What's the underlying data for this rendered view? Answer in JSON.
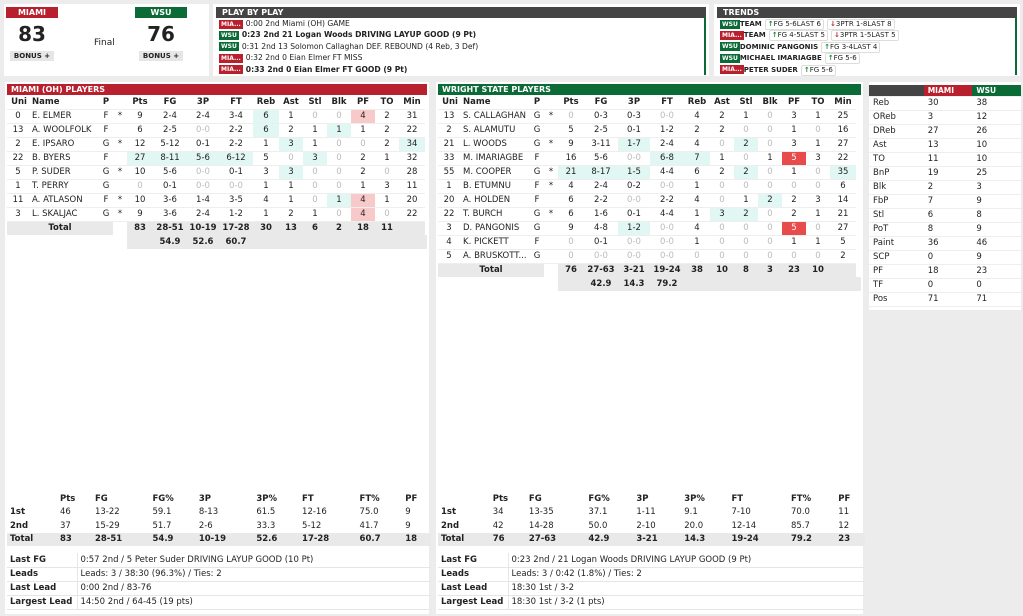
{
  "colors": {
    "miami": "#b8202e",
    "wsu": "#0b6b37",
    "header": "#444444",
    "lead_cell": "#e0f7f3",
    "foul_warn": "#f8c9c9",
    "fouled_out": "#e84b4b"
  },
  "score": {
    "home": {
      "abbr": "MIAMI",
      "score": "83",
      "bonus": "BONUS +"
    },
    "away": {
      "abbr": "WSU",
      "score": "76",
      "bonus": "BONUS +"
    },
    "status": "Final"
  },
  "pbp": {
    "title": "PLAY BY PLAY",
    "items": [
      {
        "team": "MIA...",
        "team_key": "miami",
        "text": "0:00 2nd Miami (OH) GAME",
        "bold": false
      },
      {
        "team": "WSU",
        "team_key": "wsu",
        "text": "0:23 2nd 21 Logan Woods DRIVING LAYUP GOOD (9 Pt)",
        "bold": true
      },
      {
        "team": "WSU",
        "team_key": "wsu",
        "text": "0:31 2nd 13 Solomon Callaghan DEF. REBOUND (4 Reb, 3 Def)",
        "bold": false
      },
      {
        "team": "MIA...",
        "team_key": "miami",
        "text": "0:32 2nd 0 Eian Elmer FT MISS",
        "bold": false
      },
      {
        "team": "MIA...",
        "team_key": "miami",
        "text": "0:33 2nd 0 Eian Elmer FT GOOD (9 Pt)",
        "bold": true
      }
    ]
  },
  "trends": {
    "title": "TRENDS",
    "items": [
      {
        "team": "WSU",
        "team_key": "wsu",
        "who": "TEAM",
        "chips": [
          {
            "dir": "up",
            "text": "FG 5-6LAST 6"
          },
          {
            "dir": "down",
            "text": "3PTR 1-8LAST 8"
          }
        ]
      },
      {
        "team": "MIA...",
        "team_key": "miami",
        "who": "TEAM",
        "chips": [
          {
            "dir": "up",
            "text": "FG 4-5LAST 5"
          },
          {
            "dir": "down",
            "text": "3PTR 1-5LAST 5"
          }
        ]
      },
      {
        "team": "WSU",
        "team_key": "wsu",
        "who": "DOMINIC PANGONIS",
        "chips": [
          {
            "dir": "up",
            "text": "FG 3-4LAST 4"
          }
        ]
      },
      {
        "team": "WSU",
        "team_key": "wsu",
        "who": "MICHAEL IMARIAGBE",
        "chips": [
          {
            "dir": "up",
            "text": "FG 5-6"
          }
        ]
      },
      {
        "team": "MIA...",
        "team_key": "miami",
        "who": "PETER SUDER",
        "chips": [
          {
            "dir": "up",
            "text": "FG 5-6"
          }
        ]
      }
    ]
  },
  "columns": [
    "Uni",
    "Name",
    "P",
    "",
    "Pts",
    "FG",
    "3P",
    "FT",
    "Reb",
    "Ast",
    "Stl",
    "Blk",
    "PF",
    "TO",
    "Min"
  ],
  "teams": [
    {
      "key": "miami",
      "title": "MIAMI (OH) PLAYERS",
      "players": [
        {
          "row": [
            "0",
            "E. ELMER",
            "F",
            "*",
            "9",
            "2-4",
            "2-4",
            "3-4",
            "6",
            "1",
            "0",
            "0",
            "4",
            "2",
            "31"
          ],
          "hl": {
            "Reb": "c",
            "PF": "p"
          }
        },
        {
          "row": [
            "13",
            "A. WOOLFOLK",
            "F",
            "",
            "6",
            "2-5",
            "0-0",
            "2-2",
            "6",
            "2",
            "1",
            "1",
            "1",
            "2",
            "22"
          ],
          "hl": {
            "Reb": "c",
            "Blk": "c"
          }
        },
        {
          "row": [
            "2",
            "E. IPSARO",
            "G",
            "*",
            "12",
            "5-12",
            "0-1",
            "2-2",
            "1",
            "3",
            "1",
            "0",
            "0",
            "2",
            "34"
          ],
          "hl": {
            "Ast": "c",
            "Min": "c"
          }
        },
        {
          "row": [
            "22",
            "B. BYERS",
            "F",
            "",
            "27",
            "8-11",
            "5-6",
            "6-12",
            "5",
            "0",
            "3",
            "0",
            "2",
            "1",
            "32"
          ],
          "hl": {
            "Pts": "c",
            "FG": "c",
            "3P": "c",
            "FT": "c",
            "Stl": "c"
          }
        },
        {
          "row": [
            "5",
            "P. SUDER",
            "G",
            "*",
            "10",
            "5-6",
            "0-0",
            "0-1",
            "3",
            "3",
            "0",
            "0",
            "2",
            "0",
            "28"
          ],
          "hl": {
            "Ast": "c"
          }
        },
        {
          "row": [
            "1",
            "T. PERRY",
            "G",
            "",
            "0",
            "0-1",
            "0-0",
            "0-0",
            "1",
            "1",
            "0",
            "0",
            "1",
            "3",
            "11"
          ],
          "hl": {}
        },
        {
          "row": [
            "11",
            "A. ATLASON",
            "F",
            "*",
            "10",
            "3-6",
            "1-4",
            "3-5",
            "4",
            "1",
            "0",
            "1",
            "4",
            "1",
            "20"
          ],
          "hl": {
            "Blk": "c",
            "PF": "p"
          }
        },
        {
          "row": [
            "3",
            "L. SKALJAC",
            "G",
            "*",
            "9",
            "3-6",
            "2-4",
            "1-2",
            "1",
            "2",
            "1",
            "0",
            "4",
            "0",
            "22"
          ],
          "hl": {
            "PF": "p"
          }
        }
      ],
      "total": {
        "label": "Total",
        "vals": [
          "83",
          "28-51",
          "10-19",
          "17-28",
          "30",
          "13",
          "6",
          "2",
          "18",
          "11",
          ""
        ],
        "pcts": [
          "54.9",
          "52.6",
          "60.7"
        ]
      },
      "halves": {
        "cols": [
          "",
          "Pts",
          "FG",
          "FG%",
          "3P",
          "3P%",
          "FT",
          "FT%",
          "PF"
        ],
        "rows": [
          [
            "1st",
            "46",
            "13-22",
            "59.1",
            "8-13",
            "61.5",
            "12-16",
            "75.0",
            "9"
          ],
          [
            "2nd",
            "37",
            "15-29",
            "51.7",
            "2-6",
            "33.3",
            "5-12",
            "41.7",
            "9"
          ],
          [
            "Total",
            "83",
            "28-51",
            "54.9",
            "10-19",
            "52.6",
            "17-28",
            "60.7",
            "18"
          ]
        ]
      },
      "info": [
        [
          "Last FG",
          "0:57 2nd / 5 Peter Suder DRIVING LAYUP GOOD (10 Pt)"
        ],
        [
          "Leads",
          "Leads: 3 / 38:30 (96.3%) / Ties: 2"
        ],
        [
          "Last Lead",
          "0:00 2nd / 83-76"
        ],
        [
          "Largest Lead",
          "14:50 2nd / 64-45 (19 pts)"
        ]
      ]
    },
    {
      "key": "wsu",
      "title": "WRIGHT STATE PLAYERS",
      "players": [
        {
          "row": [
            "13",
            "S. CALLAGHAN",
            "G",
            "*",
            "0",
            "0-3",
            "0-3",
            "0-0",
            "4",
            "2",
            "1",
            "0",
            "3",
            "1",
            "25"
          ],
          "hl": {}
        },
        {
          "row": [
            "2",
            "S. ALAMUTU",
            "G",
            "",
            "5",
            "2-5",
            "0-1",
            "1-2",
            "2",
            "2",
            "0",
            "0",
            "1",
            "0",
            "16"
          ],
          "hl": {}
        },
        {
          "row": [
            "21",
            "L. WOODS",
            "G",
            "*",
            "9",
            "3-11",
            "1-7",
            "2-4",
            "4",
            "0",
            "2",
            "0",
            "3",
            "1",
            "27"
          ],
          "hl": {
            "3P": "c",
            "Stl": "c"
          }
        },
        {
          "row": [
            "33",
            "M. IMARIAGBE",
            "F",
            "",
            "16",
            "5-6",
            "0-0",
            "6-8",
            "7",
            "1",
            "0",
            "1",
            "5",
            "3",
            "22"
          ],
          "hl": {
            "FT": "c",
            "Reb": "c",
            "PF": "r"
          }
        },
        {
          "row": [
            "55",
            "M. COOPER",
            "G",
            "*",
            "21",
            "8-17",
            "1-5",
            "4-4",
            "6",
            "2",
            "2",
            "0",
            "1",
            "0",
            "35"
          ],
          "hl": {
            "Pts": "c",
            "FG": "c",
            "3P": "c",
            "Stl": "c",
            "Min": "c"
          }
        },
        {
          "row": [
            "1",
            "B. ETUMNU",
            "F",
            "*",
            "4",
            "2-4",
            "0-2",
            "0-0",
            "1",
            "0",
            "0",
            "0",
            "0",
            "0",
            "6"
          ],
          "hl": {}
        },
        {
          "row": [
            "20",
            "A. HOLDEN",
            "F",
            "",
            "6",
            "2-2",
            "0-0",
            "2-2",
            "4",
            "0",
            "1",
            "2",
            "2",
            "3",
            "14"
          ],
          "hl": {
            "Blk": "c"
          }
        },
        {
          "row": [
            "22",
            "T. BURCH",
            "G",
            "*",
            "6",
            "1-6",
            "0-1",
            "4-4",
            "1",
            "3",
            "2",
            "0",
            "2",
            "1",
            "21"
          ],
          "hl": {
            "Ast": "c",
            "Stl": "c"
          }
        },
        {
          "row": [
            "3",
            "D. PANGONIS",
            "G",
            "",
            "9",
            "4-8",
            "1-2",
            "0-0",
            "4",
            "0",
            "0",
            "0",
            "5",
            "0",
            "27"
          ],
          "hl": {
            "3P": "c",
            "PF": "r"
          }
        },
        {
          "row": [
            "4",
            "K. PICKETT",
            "F",
            "",
            "0",
            "0-1",
            "0-0",
            "0-0",
            "1",
            "0",
            "0",
            "0",
            "1",
            "1",
            "5"
          ],
          "hl": {}
        },
        {
          "row": [
            "5",
            "A. BRUSKOTT...",
            "G",
            "",
            "0",
            "0-0",
            "0-0",
            "0-0",
            "0",
            "0",
            "0",
            "0",
            "0",
            "0",
            "2"
          ],
          "hl": {}
        }
      ],
      "total": {
        "label": "Total",
        "vals": [
          "76",
          "27-63",
          "3-21",
          "19-24",
          "38",
          "10",
          "8",
          "3",
          "23",
          "10",
          ""
        ],
        "pcts": [
          "42.9",
          "14.3",
          "79.2"
        ]
      },
      "halves": {
        "cols": [
          "",
          "Pts",
          "FG",
          "FG%",
          "3P",
          "3P%",
          "FT",
          "FT%",
          "PF"
        ],
        "rows": [
          [
            "1st",
            "34",
            "13-35",
            "37.1",
            "1-11",
            "9.1",
            "7-10",
            "70.0",
            "11"
          ],
          [
            "2nd",
            "42",
            "14-28",
            "50.0",
            "2-10",
            "20.0",
            "12-14",
            "85.7",
            "12"
          ],
          [
            "Total",
            "76",
            "27-63",
            "42.9",
            "3-21",
            "14.3",
            "19-24",
            "79.2",
            "23"
          ]
        ]
      },
      "info": [
        [
          "Last FG",
          "0:23 2nd / 21 Logan Woods DRIVING LAYUP GOOD (9 Pt)"
        ],
        [
          "Leads",
          "Leads: 3 / 0:42 (1.8%) / Ties: 2"
        ],
        [
          "Last Lead",
          "18:30 1st / 3-2"
        ],
        [
          "Largest Lead",
          "18:30 1st / 3-2 (1 pts)"
        ]
      ]
    }
  ],
  "comparison": {
    "headers": [
      "",
      "MIAMI",
      "WSU"
    ],
    "rows": [
      [
        "Reb",
        "30",
        "38"
      ],
      [
        "OReb",
        "3",
        "12"
      ],
      [
        "DReb",
        "27",
        "26"
      ],
      [
        "Ast",
        "13",
        "10"
      ],
      [
        "TO",
        "11",
        "10"
      ],
      [
        "BnP",
        "19",
        "25"
      ],
      [
        "Blk",
        "2",
        "3"
      ],
      [
        "FbP",
        "7",
        "9"
      ],
      [
        "Stl",
        "6",
        "8"
      ],
      [
        "PoT",
        "8",
        "9"
      ],
      [
        "Paint",
        "36",
        "46"
      ],
      [
        "SCP",
        "0",
        "9"
      ],
      [
        "PF",
        "18",
        "23"
      ],
      [
        "TF",
        "0",
        "0"
      ],
      [
        "Pos",
        "71",
        "71"
      ]
    ]
  }
}
